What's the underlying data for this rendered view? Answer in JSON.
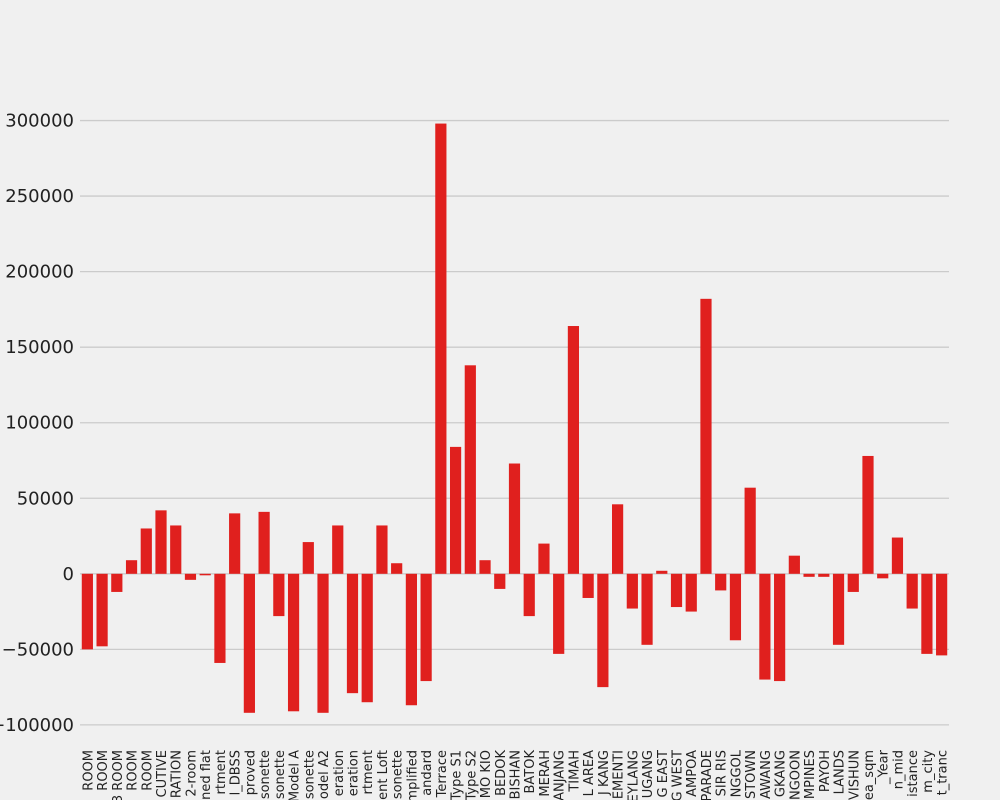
{
  "chart_data": {
    "type": "bar",
    "categories": [
      "ROOM",
      "ROOM",
      "3 ROOM",
      "ROOM",
      "ROOM",
      "CUTIVE",
      "RATION",
      "2-room",
      "ned flat",
      "rtment",
      "l_DBSS",
      "proved",
      "isonette",
      "lisonette",
      "Model A",
      "isonette",
      "odel A2",
      "eration",
      "eration",
      "rtment",
      "ent Loft",
      "isonette",
      "mplified",
      "andard",
      "Terrace",
      "Type S1",
      "Type S2",
      "MO KIO",
      "BEDOK",
      "BISHAN",
      "BATOK",
      "MERAH",
      "ANJANG",
      "TIMAH",
      "L AREA",
      "J KANG",
      "EMENTI",
      "EYLANG",
      "UGANG",
      "G EAST",
      "G WEST",
      "AMPOA",
      "PARADE",
      "SIR RIS",
      "NGGOL",
      "STOWN",
      "AWANG",
      "GKANG",
      "NGOON",
      "MPINES",
      "PAYOH",
      "LANDS",
      "VISHUN",
      "ea_sqm",
      "_Year",
      "n_mid",
      "istance",
      "m_city",
      "t_tranc"
    ],
    "values": [
      -50000,
      -48000,
      -12000,
      9000,
      30000,
      42000,
      32000,
      -4000,
      -1000,
      -59000,
      40000,
      -92000,
      41000,
      -28000,
      -91000,
      21000,
      -92000,
      32000,
      -79000,
      -85000,
      32000,
      7000,
      -87000,
      -71000,
      298000,
      84000,
      138000,
      9000,
      -10000,
      73000,
      -28000,
      20000,
      -53000,
      164000,
      -16000,
      -75000,
      46000,
      -23000,
      -47000,
      2000,
      -22000,
      -25000,
      182000,
      -11000,
      -44000,
      57000,
      -70000,
      -71000,
      12000,
      -2000,
      -2000,
      -47000,
      -12000,
      78000,
      -3000,
      24000,
      -23000,
      -53000,
      -54000
    ],
    "color": "#e0201e",
    "ylim": [
      -110000,
      350000
    ],
    "yticks": [
      {
        "value": -100000,
        "label": "−100000"
      },
      {
        "value": -50000,
        "label": "−50000"
      },
      0,
      50000,
      100000,
      150000,
      200000,
      250000,
      300000
    ],
    "grid": true
  }
}
